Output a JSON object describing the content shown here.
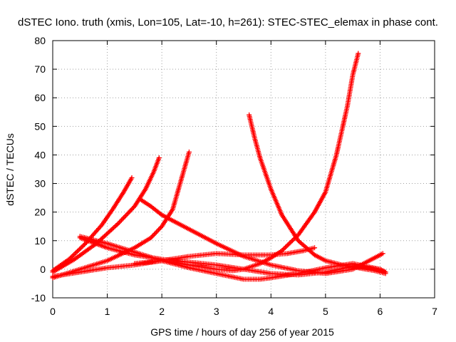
{
  "chart_data": {
    "type": "scatter",
    "title": "dSTEC Iono. truth (xmis, Lon=105, Lat=-10, h=261): STEC-STEC_elemax in phase cont.",
    "xlabel": "GPS time / hours of day 256 of year 2015",
    "ylabel": "dSTEC  / TECUs",
    "xlim": [
      0,
      7
    ],
    "ylim": [
      -10,
      80
    ],
    "xticks": [
      0,
      1,
      2,
      3,
      4,
      5,
      6,
      7
    ],
    "yticks": [
      -10,
      0,
      10,
      20,
      30,
      40,
      50,
      60,
      70,
      80
    ],
    "grid": true,
    "marker": "+",
    "color": "#ff0000",
    "series": [
      {
        "x": [
          0.0,
          0.3,
          0.6,
          0.9,
          1.1,
          1.3,
          1.45
        ],
        "y": [
          -0.5,
          3.5,
          9,
          15.5,
          21,
          27,
          32
        ]
      },
      {
        "x": [
          0.0,
          0.4,
          0.8,
          1.2,
          1.5,
          1.7,
          1.85,
          1.95
        ],
        "y": [
          -1,
          3.5,
          9,
          16,
          22,
          28,
          34,
          39
        ]
      },
      {
        "x": [
          0.0,
          0.5,
          1.0,
          1.5,
          1.8,
          2.0,
          2.2,
          2.35,
          2.5
        ],
        "y": [
          -3,
          0,
          3,
          7.5,
          11,
          15,
          21,
          31,
          41
        ]
      },
      {
        "x": [
          0.0,
          0.5,
          1.0,
          1.5,
          2.0,
          2.5,
          3.0,
          3.5,
          4.0,
          4.3,
          4.6,
          4.8
        ],
        "y": [
          -2.5,
          -1,
          0.5,
          1.5,
          3,
          4.5,
          5.5,
          5,
          5,
          5.5,
          6.5,
          7.5
        ]
      },
      {
        "x": [
          1.6,
          1.8,
          2.0,
          2.5,
          3.0,
          3.5,
          4.0,
          4.5,
          5.0,
          5.5,
          6.05
        ],
        "y": [
          24.5,
          22,
          19,
          14,
          9,
          4.5,
          1.5,
          -0.5,
          -1.5,
          0,
          5.5
        ]
      },
      {
        "x": [
          0.5,
          1.0,
          1.5,
          2.0,
          2.5,
          3.0,
          3.5,
          3.8,
          4.0,
          4.5,
          5.0,
          5.5,
          6.0,
          6.1
        ],
        "y": [
          11.5,
          9,
          6,
          3,
          0.5,
          -1.5,
          -3.5,
          -3.5,
          -3,
          -1.5,
          0.5,
          2,
          0,
          -1
        ]
      },
      {
        "x": [
          1.5,
          2.0,
          2.5,
          3.0,
          3.3,
          3.5,
          3.8,
          4.0,
          4.2,
          4.5,
          4.8,
          5.0,
          5.2,
          5.4,
          5.5,
          5.6
        ],
        "y": [
          2,
          3,
          1.5,
          0,
          -0.5,
          0,
          2,
          4,
          6.5,
          12,
          20,
          27,
          40,
          57,
          68,
          75.5
        ]
      },
      {
        "x": [
          3.6,
          3.7,
          3.8,
          4.0,
          4.2,
          4.5,
          4.8,
          5.0,
          5.3,
          5.6,
          5.9,
          6.1
        ],
        "y": [
          54,
          46,
          39,
          28,
          19,
          10,
          5,
          3,
          1.5,
          0.5,
          -0.5,
          -1.5
        ]
      },
      {
        "x": [
          0.5,
          1.0,
          1.5,
          2.0,
          2.5,
          3.0,
          3.5,
          4.0,
          4.5,
          5.0,
          5.5,
          6.0,
          6.1
        ],
        "y": [
          11,
          7.5,
          5,
          3.5,
          2.5,
          1.5,
          0,
          -1.5,
          -2,
          -1,
          1,
          0,
          -1
        ]
      }
    ]
  }
}
